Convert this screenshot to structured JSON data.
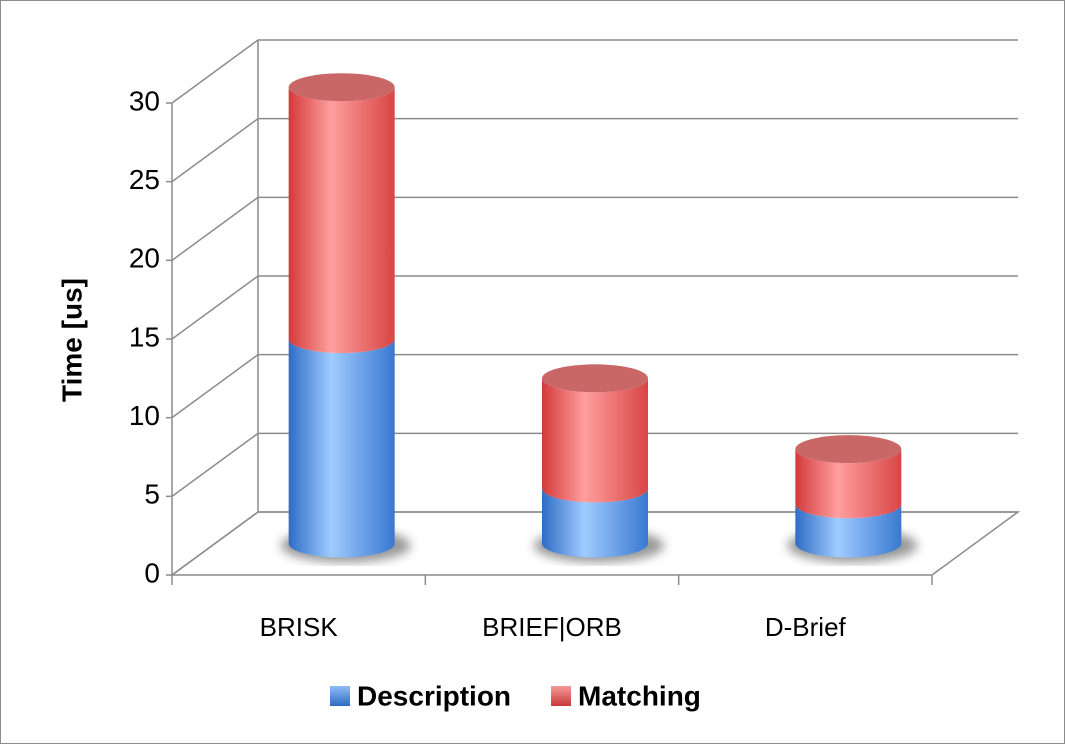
{
  "chart_data": {
    "type": "bar3d",
    "stacked": true,
    "y_label": "Time [us]",
    "categories": [
      "BRISK",
      "BRIEF|ORB",
      "D-Brief"
    ],
    "series": [
      {
        "name": "Description",
        "color": "#4f81bd",
        "values": [
          13,
          3.5,
          2.5
        ]
      },
      {
        "name": "Matching",
        "color": "#c0504d",
        "values": [
          16,
          7,
          3.5
        ]
      }
    ],
    "ylim": [
      0,
      30
    ],
    "yticks": [
      0,
      5,
      10,
      15,
      20,
      25,
      30
    ],
    "grid": true,
    "legend": "bottom"
  }
}
